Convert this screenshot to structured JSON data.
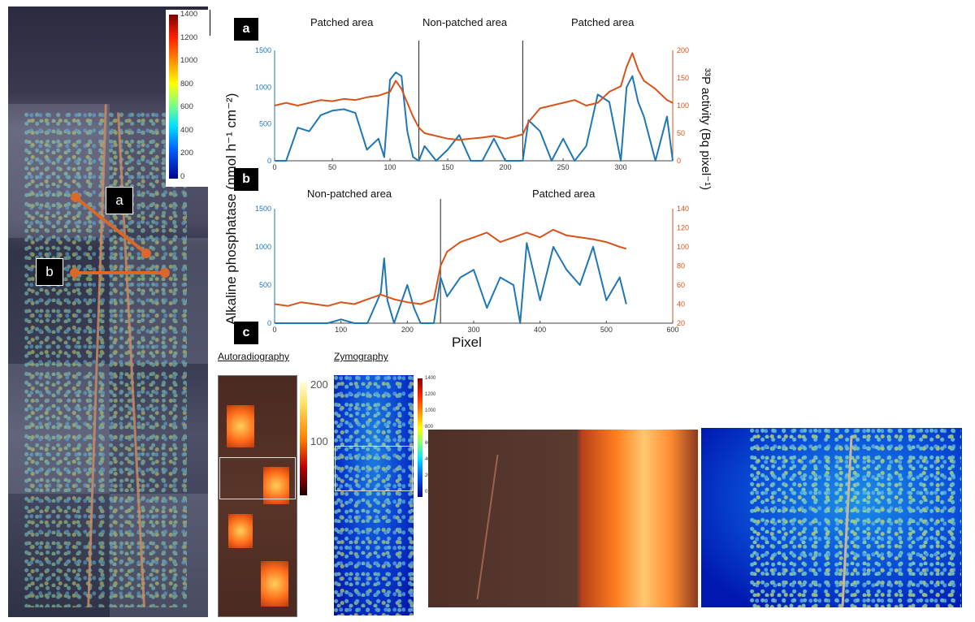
{
  "colorbar": {
    "ticks": [
      "1400",
      "1200",
      "1000",
      "800",
      "600",
      "400",
      "200",
      "0"
    ],
    "unit_label": "(nmol h⁻¹ cm⁻²)"
  },
  "labels": {
    "a": "a",
    "b": "b",
    "c": "c"
  },
  "panel_a": {
    "regions": [
      "Patched area",
      "Non-patched area",
      "Patched area"
    ],
    "left_ticks": [
      "1500",
      "1000",
      "500",
      "0"
    ],
    "right_ticks": [
      "200",
      "150",
      "100",
      "50",
      "0"
    ],
    "x_ticks": [
      "0",
      "50",
      "100",
      "150",
      "200",
      "250",
      "300"
    ]
  },
  "panel_b": {
    "regions": [
      "Non-patched area",
      "Patched area"
    ],
    "left_ticks": [
      "1500",
      "1000",
      "500",
      "0"
    ],
    "right_ticks": [
      "140",
      "120",
      "100",
      "80",
      "60",
      "40",
      "20"
    ],
    "x_ticks": [
      "0",
      "100",
      "200",
      "300",
      "400",
      "500",
      "600"
    ]
  },
  "axes": {
    "left_title": "Alkaline phosphatase",
    "left_unit": "(nmol h⁻¹ cm⁻²)",
    "right_title": "³³P activity (Bq pixel⁻¹)",
    "x_title": "Pixel"
  },
  "panel_c": {
    "autoradiography": "Autoradiography",
    "zymography": "Zymography",
    "auto_ticks": [
      "200",
      "100"
    ],
    "zymo_ticks": [
      "1400",
      "1200",
      "1000",
      "800",
      "600",
      "400",
      "200",
      "0"
    ]
  },
  "colors": {
    "blue": "#1f77b4",
    "orange": "#d95319"
  },
  "chart_data": [
    {
      "type": "line",
      "title": "",
      "xlabel": "Pixel",
      "ylabel": "Alkaline phosphatase (nmol h⁻¹ cm⁻²)",
      "y2label": "³³P activity (Bq pixel⁻¹)",
      "xlim": [
        0,
        345
      ],
      "ylim": [
        0,
        1500
      ],
      "y2lim": [
        0,
        200
      ],
      "dividers": [
        125,
        215
      ],
      "series": [
        {
          "axis": "left",
          "color": "#1f77b4",
          "x": [
            0,
            10,
            20,
            30,
            40,
            50,
            60,
            70,
            80,
            90,
            95,
            100,
            105,
            110,
            115,
            120,
            125,
            130,
            140,
            150,
            160,
            170,
            180,
            190,
            200,
            210,
            215,
            220,
            230,
            240,
            250,
            260,
            270,
            280,
            290,
            300,
            305,
            310,
            315,
            320,
            330,
            340,
            345
          ],
          "y": [
            0,
            0,
            450,
            400,
            620,
            680,
            700,
            650,
            150,
            300,
            50,
            1100,
            1200,
            1150,
            400,
            50,
            0,
            200,
            0,
            150,
            350,
            0,
            0,
            300,
            0,
            0,
            0,
            550,
            400,
            0,
            300,
            0,
            200,
            900,
            800,
            0,
            1000,
            1150,
            800,
            600,
            0,
            600,
            0
          ]
        },
        {
          "axis": "right",
          "color": "#d95319",
          "x": [
            0,
            10,
            20,
            30,
            40,
            50,
            60,
            70,
            80,
            90,
            100,
            105,
            110,
            115,
            120,
            125,
            130,
            140,
            150,
            160,
            170,
            180,
            190,
            200,
            210,
            215,
            220,
            230,
            240,
            250,
            260,
            270,
            280,
            290,
            300,
            305,
            310,
            315,
            320,
            330,
            340,
            345
          ],
          "y": [
            100,
            105,
            100,
            105,
            110,
            108,
            112,
            110,
            115,
            118,
            125,
            145,
            130,
            105,
            80,
            60,
            50,
            45,
            40,
            38,
            40,
            42,
            45,
            40,
            45,
            48,
            70,
            95,
            100,
            105,
            110,
            100,
            105,
            125,
            135,
            170,
            195,
            165,
            145,
            130,
            110,
            105
          ]
        }
      ]
    },
    {
      "type": "line",
      "title": "",
      "xlabel": "Pixel",
      "ylabel": "Alkaline phosphatase (nmol h⁻¹ cm⁻²)",
      "y2label": "³³P activity (Bq pixel⁻¹)",
      "xlim": [
        0,
        600
      ],
      "ylim": [
        0,
        1500
      ],
      "y2lim": [
        20,
        140
      ],
      "dividers": [
        250
      ],
      "series": [
        {
          "axis": "left",
          "color": "#1f77b4",
          "x": [
            0,
            20,
            40,
            60,
            80,
            100,
            120,
            140,
            160,
            165,
            170,
            180,
            200,
            210,
            220,
            240,
            250,
            260,
            280,
            300,
            320,
            340,
            360,
            370,
            380,
            400,
            420,
            440,
            460,
            480,
            500,
            520,
            530
          ],
          "y": [
            0,
            0,
            0,
            0,
            0,
            50,
            0,
            0,
            400,
            850,
            300,
            0,
            500,
            200,
            0,
            0,
            600,
            350,
            600,
            700,
            200,
            600,
            500,
            0,
            1050,
            300,
            1000,
            700,
            500,
            1000,
            300,
            600,
            250
          ]
        },
        {
          "axis": "right",
          "color": "#d95319",
          "x": [
            0,
            20,
            40,
            60,
            80,
            100,
            120,
            140,
            160,
            180,
            200,
            220,
            240,
            250,
            260,
            280,
            300,
            320,
            340,
            360,
            380,
            400,
            420,
            440,
            460,
            480,
            500,
            520,
            530
          ],
          "y": [
            40,
            38,
            42,
            40,
            38,
            42,
            40,
            45,
            50,
            45,
            42,
            40,
            45,
            80,
            95,
            105,
            110,
            115,
            105,
            110,
            115,
            110,
            118,
            112,
            110,
            108,
            105,
            100,
            98
          ]
        }
      ]
    }
  ]
}
